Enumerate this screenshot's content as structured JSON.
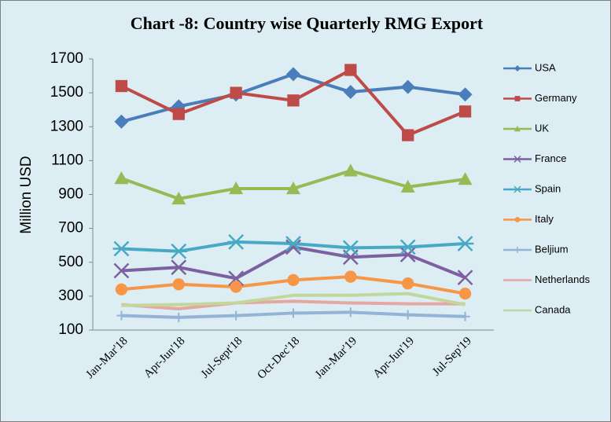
{
  "chart_data": {
    "type": "line",
    "title": "Chart -8: Country wise Quarterly RMG Export",
    "y_label": "Million USD",
    "categories": [
      "Jan-Mar'18",
      "Apr-Jun'18",
      "Jul-Sept'18",
      "Oct-Dec'18",
      "Jan-Mar'19",
      "Apr-Jun'19",
      "Jul-Sep'19"
    ],
    "ylim": [
      100,
      1700
    ],
    "yticks": [
      100,
      300,
      500,
      700,
      900,
      1100,
      1300,
      1500,
      1700
    ],
    "grid": false,
    "legend": "right",
    "series": [
      {
        "name": "USA",
        "color": "#4a7ebb",
        "marker": "diamond",
        "values": [
          1330,
          1420,
          1490,
          1610,
          1505,
          1535,
          1490
        ]
      },
      {
        "name": "Germany",
        "color": "#be4b48",
        "marker": "square",
        "values": [
          1540,
          1375,
          1500,
          1455,
          1635,
          1250,
          1390
        ]
      },
      {
        "name": "UK",
        "color": "#98b954",
        "marker": "triangle",
        "values": [
          995,
          875,
          935,
          935,
          1040,
          945,
          990
        ]
      },
      {
        "name": "France",
        "color": "#7d60a0",
        "marker": "x",
        "values": [
          450,
          470,
          405,
          590,
          530,
          545,
          410
        ]
      },
      {
        "name": "Spain",
        "color": "#46aac5",
        "marker": "star",
        "values": [
          580,
          565,
          620,
          610,
          585,
          590,
          610
        ]
      },
      {
        "name": "Italy",
        "color": "#f79646",
        "marker": "circle",
        "values": [
          340,
          370,
          355,
          395,
          415,
          375,
          315
        ]
      },
      {
        "name": "Beljium",
        "color": "#95b3d7",
        "marker": "plus",
        "values": [
          185,
          175,
          185,
          200,
          205,
          190,
          180
        ]
      },
      {
        "name": "Netherlands",
        "color": "#e6a6a4",
        "marker": "none",
        "values": [
          250,
          225,
          260,
          270,
          260,
          255,
          255
        ]
      },
      {
        "name": "Canada",
        "color": "#c3d69b",
        "marker": "none",
        "values": [
          245,
          250,
          260,
          305,
          305,
          315,
          250
        ]
      }
    ]
  }
}
